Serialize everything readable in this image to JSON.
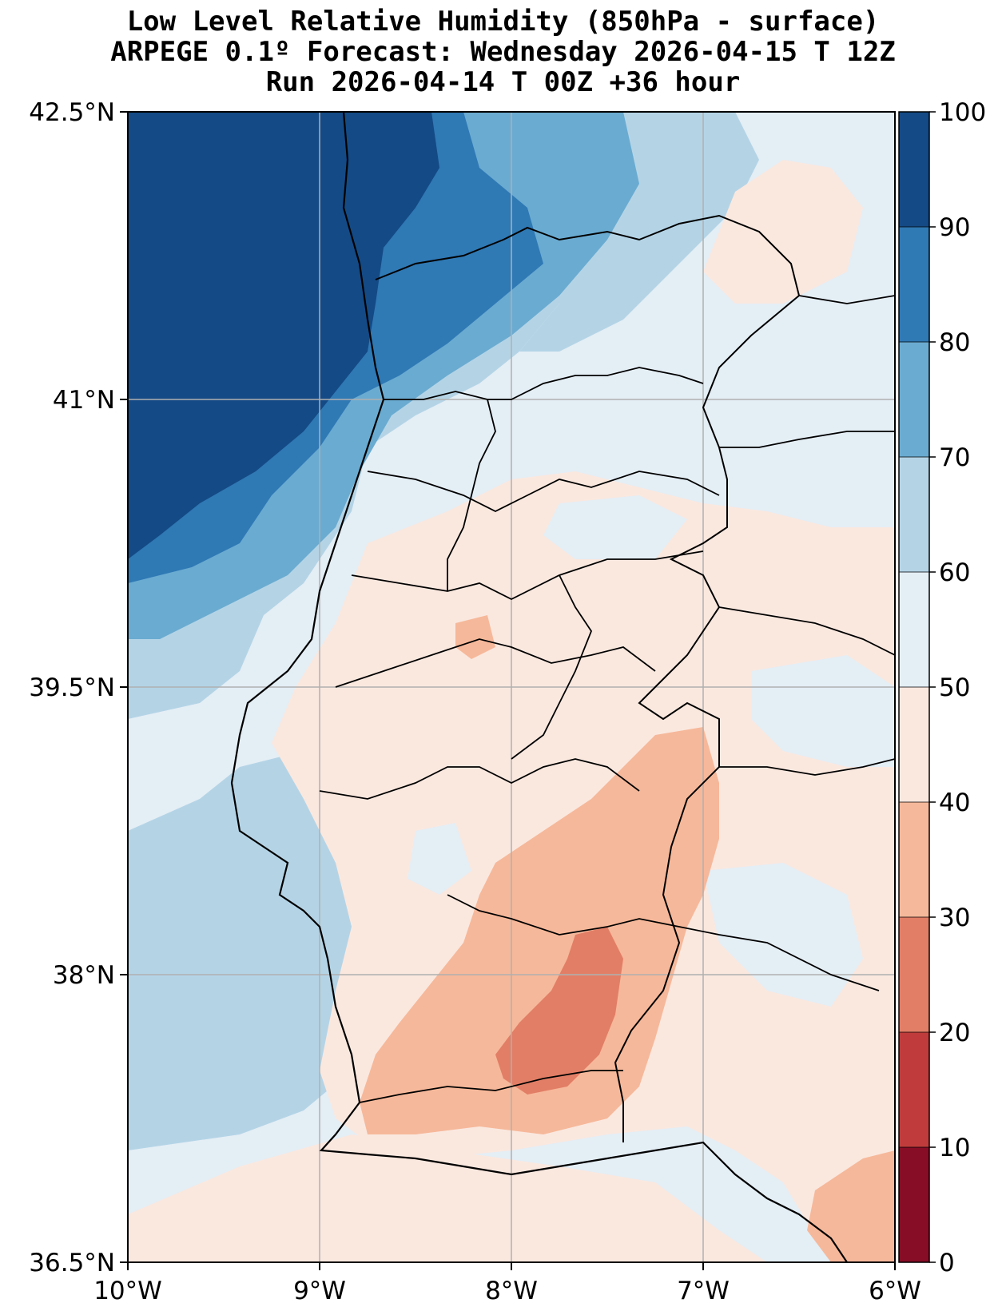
{
  "title": {
    "line1": "Low Level Relative Humidity (850hPa - surface)",
    "line2": "ARPEGE 0.1º Forecast: Wednesday 2026-04-15 T 12Z",
    "line3": "Run 2026-04-14 T 00Z +36 hour"
  },
  "map": {
    "lon_range": [
      -10,
      -6
    ],
    "lat_range": [
      36.5,
      42.5
    ],
    "gridlines": true,
    "x_ticks": [
      "10°W",
      "9°W",
      "8°W",
      "7°W",
      "6°W"
    ],
    "y_ticks": [
      "42.5°N",
      "41°N",
      "39.5°N",
      "38°N",
      "36.5°N"
    ],
    "field": "relative humidity (%)",
    "sea_color": "#b4d4e6",
    "coast_color": "#000000"
  },
  "colorbar": {
    "ticks": [
      "100",
      "90",
      "80",
      "70",
      "60",
      "50",
      "40",
      "30",
      "20",
      "10",
      "0"
    ],
    "levels": [
      {
        "range": "90-100",
        "color": "#144a85"
      },
      {
        "range": "80-90",
        "color": "#2f79b5"
      },
      {
        "range": "70-80",
        "color": "#6aabd1"
      },
      {
        "range": "60-70",
        "color": "#b4d4e6"
      },
      {
        "range": "50-60",
        "color": "#e4eef5"
      },
      {
        "range": "40-50",
        "color": "#fae8df"
      },
      {
        "range": "30-40",
        "color": "#f6b89a"
      },
      {
        "range": "20-30",
        "color": "#e27e66"
      },
      {
        "range": "10-20",
        "color": "#c03c3c"
      },
      {
        "range": "0-10",
        "color": "#870d26"
      }
    ]
  }
}
